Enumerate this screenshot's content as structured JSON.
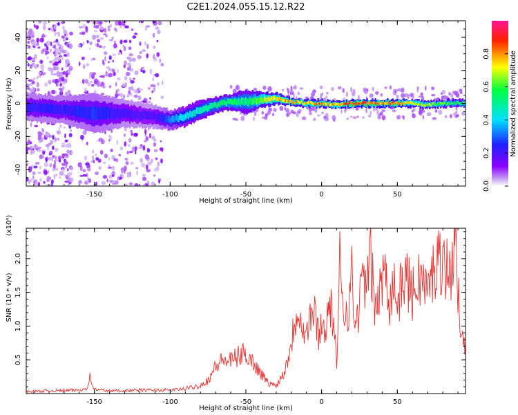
{
  "title": "C2E1.2024.055.15.12.R22",
  "colors": {
    "snr_line": "#e8302e",
    "frame": "#000000"
  },
  "chart_data": [
    {
      "type": "heatmap",
      "xlabel": "Height of straight line (km)",
      "ylabel": "Frequency (Hz)",
      "xlim": [
        -195,
        95
      ],
      "ylim": [
        -50,
        50
      ],
      "xticks": [
        -150,
        -100,
        -50,
        0,
        50
      ],
      "yticks": [
        -40,
        -20,
        0,
        20,
        40
      ],
      "colorbar": {
        "label": "Normalized spectral amplitude",
        "range": [
          0.0,
          1.0
        ],
        "ticks": [
          "0.0",
          "0.2",
          "0.4",
          "0.6",
          "0.8"
        ],
        "colormap": "rainbow (white to purple, blue, cyan, green, yellow, red, magenta)"
      },
      "ridge": {
        "description": "Main spectral ridge versus height",
        "x": [
          -195,
          -170,
          -150,
          -130,
          -110,
          -100,
          -90,
          -80,
          -70,
          -60,
          -50,
          -40,
          -30,
          -20,
          -10,
          0,
          10,
          20,
          30,
          40,
          50,
          60,
          70,
          80,
          90
        ],
        "freq": [
          -2,
          -4,
          -6,
          -6,
          -8,
          -10,
          -8,
          -4,
          -1,
          1,
          1,
          2,
          3,
          1,
          0,
          0,
          -1,
          0,
          0,
          0,
          0,
          0,
          -1,
          0,
          0
        ],
        "amplitude": [
          0.25,
          0.25,
          0.28,
          0.22,
          0.2,
          0.35,
          0.45,
          0.5,
          0.55,
          0.6,
          0.55,
          0.7,
          0.8,
          0.85,
          0.8,
          0.85,
          0.8,
          0.95,
          0.9,
          0.85,
          0.9,
          0.75,
          0.7,
          0.65,
          0.6
        ],
        "width_hz": [
          7,
          7,
          10,
          7,
          6,
          5,
          5,
          5,
          4,
          4,
          6,
          4,
          3,
          2,
          2,
          2,
          2,
          2,
          2,
          2,
          2,
          2,
          2,
          2,
          2
        ]
      },
      "noise_regions": [
        {
          "x_range": [
            -195,
            -165
          ],
          "freq_range": [
            -50,
            50
          ],
          "level": "light purple scattered noise"
        },
        {
          "x_range": [
            -160,
            -105
          ],
          "freq_range": [
            -50,
            50
          ],
          "level": "light purple scattered noise"
        },
        {
          "x_range": [
            -60,
            95
          ],
          "freq_range": [
            -10,
            10
          ],
          "level": "faint halo around ridge"
        }
      ]
    },
    {
      "type": "line",
      "xlabel": "Height of straight line (km)",
      "ylabel": "SNR (10 * v/v)",
      "y_multiplier": "(x10⁴)",
      "xlim": [
        -195,
        95
      ],
      "ylim": [
        0,
        2.45
      ],
      "xticks": [
        -150,
        -100,
        -50,
        0,
        50
      ],
      "yticks": [
        0.5,
        1.0,
        1.5,
        2.0
      ],
      "series": [
        {
          "x": [
            -195,
            -180,
            -160,
            -155,
            -153,
            -150,
            -140,
            -120,
            -100,
            -90,
            -80,
            -75,
            -70,
            -65,
            -60,
            -55,
            -50,
            -45,
            -40,
            -35,
            -30,
            -25,
            -22,
            -20,
            -18,
            -15,
            -12,
            -10,
            -8,
            -5,
            -2,
            0,
            2,
            5,
            8,
            10,
            12,
            15,
            18,
            20,
            22,
            25,
            28,
            30,
            32,
            35,
            38,
            40,
            42,
            45,
            48,
            50,
            55,
            60,
            65,
            70,
            75,
            80,
            85,
            88,
            90,
            95
          ],
          "y": [
            0.03,
            0.04,
            0.05,
            0.08,
            0.24,
            0.06,
            0.04,
            0.05,
            0.05,
            0.07,
            0.12,
            0.2,
            0.4,
            0.5,
            0.48,
            0.55,
            0.6,
            0.45,
            0.3,
            0.15,
            0.12,
            0.3,
            0.55,
            0.75,
            1.05,
            1.3,
            0.95,
            0.85,
            1.15,
            1.2,
            0.9,
            1.0,
            0.95,
            1.3,
            1.1,
            0.3,
            1.95,
            1.2,
            1.3,
            1.75,
            0.95,
            1.35,
            1.8,
            1.4,
            2.2,
            1.25,
            1.45,
            1.55,
            2.1,
            1.35,
            1.7,
            1.3,
            1.8,
            1.45,
            1.75,
            1.5,
            1.9,
            2.05,
            1.7,
            2.4,
            1.4,
            0.75
          ]
        }
      ]
    }
  ]
}
